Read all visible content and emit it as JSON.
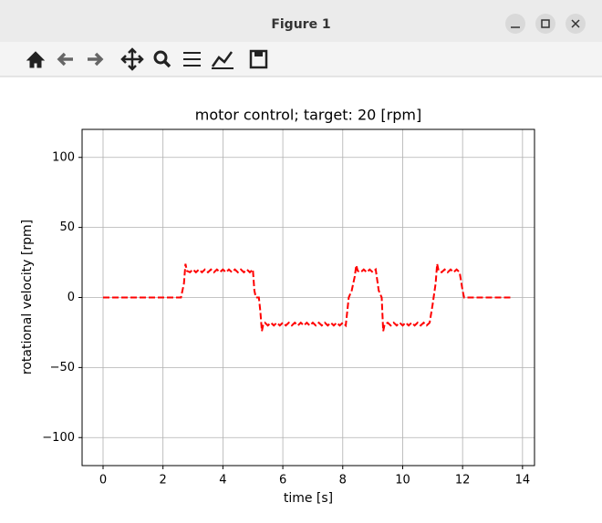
{
  "window": {
    "title": "Figure 1"
  },
  "chart_data": {
    "type": "line",
    "title": "motor control; target: 20 [rpm]",
    "xlabel": "time [s]",
    "ylabel": "rotational velocity [rpm]",
    "color": "#ff0000",
    "linestyle": "dashed",
    "grid": true,
    "xlim": [
      -0.7,
      14.4
    ],
    "ylim": [
      -120,
      120
    ],
    "xticks": [
      0,
      2,
      4,
      6,
      8,
      10,
      12,
      14
    ],
    "yticks": [
      {
        "value": -100,
        "label": "−100"
      },
      {
        "value": -50,
        "label": "−50"
      },
      0,
      50,
      100
    ],
    "x": [
      0,
      1,
      2,
      2.6,
      2.7,
      2.75,
      2.8,
      2.9,
      3.0,
      3.1,
      3.2,
      3.3,
      3.4,
      3.5,
      3.6,
      3.7,
      3.8,
      3.9,
      4.0,
      4.1,
      4.2,
      4.3,
      4.4,
      4.5,
      4.6,
      4.7,
      4.8,
      4.9,
      5.0,
      5.05,
      5.1,
      5.2,
      5.25,
      5.3,
      5.35,
      5.4,
      5.5,
      5.6,
      5.7,
      5.8,
      5.9,
      6.0,
      6.1,
      6.2,
      6.3,
      6.4,
      6.5,
      6.6,
      6.7,
      6.8,
      6.9,
      7.0,
      7.1,
      7.2,
      7.3,
      7.4,
      7.5,
      7.6,
      7.7,
      7.8,
      7.9,
      8.0,
      8.1,
      8.15,
      8.2,
      8.3,
      8.4,
      8.45,
      8.5,
      8.6,
      8.7,
      8.8,
      8.9,
      9.0,
      9.1,
      9.2,
      9.3,
      9.35,
      9.4,
      9.5,
      9.6,
      9.7,
      9.8,
      9.9,
      10.0,
      10.1,
      10.2,
      10.3,
      10.4,
      10.5,
      10.6,
      10.7,
      10.8,
      10.9,
      11.0,
      11.1,
      11.15,
      11.2,
      11.3,
      11.4,
      11.5,
      11.6,
      11.7,
      11.8,
      11.9,
      12.0,
      12.05,
      13.0,
      13.65
    ],
    "values": [
      0,
      0,
      0,
      0,
      10,
      24,
      19,
      18,
      20,
      18,
      20,
      18,
      20,
      18,
      20,
      18,
      20,
      18,
      20,
      18,
      20,
      18,
      20,
      18,
      20,
      18,
      20,
      18,
      20,
      5,
      0,
      0,
      -10,
      -24,
      -19,
      -18,
      -20,
      -18,
      -20,
      -18,
      -20,
      -18,
      -20,
      -18,
      -20,
      -18,
      -20,
      -18,
      -20,
      -18,
      -20,
      -18,
      -20,
      -18,
      -20,
      -18,
      -20,
      -18,
      -20,
      -18,
      -20,
      -18,
      -20,
      -10,
      0,
      5,
      15,
      23,
      19,
      18,
      20,
      18,
      20,
      18,
      20,
      5,
      0,
      -24,
      -19,
      -18,
      -20,
      -18,
      -20,
      -18,
      -20,
      -18,
      -20,
      -18,
      -20,
      -18,
      -20,
      -18,
      -20,
      -18,
      -5,
      10,
      24,
      19,
      18,
      20,
      18,
      20,
      18,
      20,
      18,
      5,
      0,
      0,
      0
    ]
  }
}
